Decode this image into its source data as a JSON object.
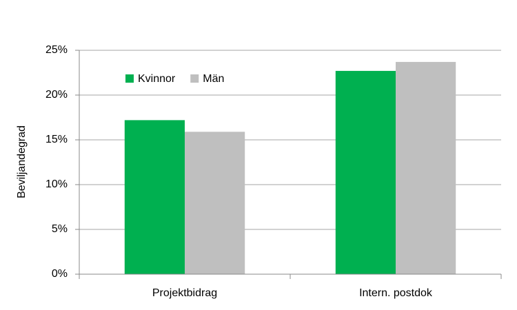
{
  "chart_data": {
    "type": "bar",
    "y_label": "Beviljandegrad",
    "categories": [
      "Projektbidrag",
      "Intern. postdok"
    ],
    "series": [
      {
        "name": "Kvinnor",
        "color": "#00b050",
        "values": [
          17.2,
          22.7
        ]
      },
      {
        "name": "Män",
        "color": "#bfbfbf",
        "values": [
          15.9,
          23.7
        ]
      }
    ],
    "ylim": [
      0,
      25
    ],
    "yticks": [
      {
        "value": 0,
        "label": "0%"
      },
      {
        "value": 5,
        "label": "5%"
      },
      {
        "value": 10,
        "label": "10%"
      },
      {
        "value": 15,
        "label": "15%"
      },
      {
        "value": 20,
        "label": "20%"
      },
      {
        "value": 25,
        "label": "25%"
      }
    ],
    "grid": true,
    "legend": "top-left"
  }
}
